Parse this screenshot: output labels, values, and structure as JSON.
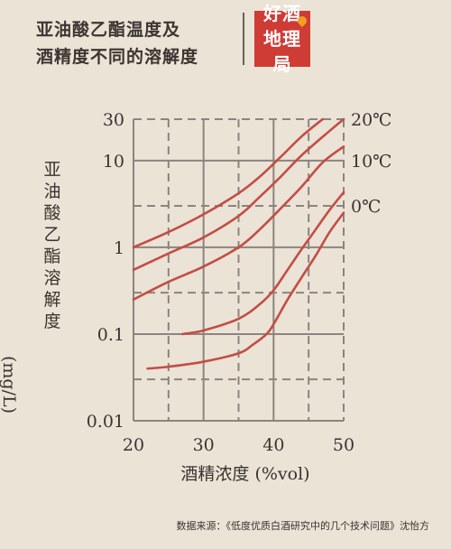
{
  "header": {
    "title_line1": "亚油酸乙酯温度及",
    "title_line2": "酒精度不同的溶解度",
    "logo_line1": "好酒",
    "logo_line2": "地理局"
  },
  "chart_data": {
    "type": "line",
    "ylabel_cjk": "亚油酸乙酯溶解度",
    "ylabel_unit": "(mg/L)",
    "xlabel": "酒精浓度 (%vol)",
    "xlim": [
      20,
      50
    ],
    "ylim": [
      0.01,
      30
    ],
    "y_scale": "log",
    "x_ticks": [
      "20",
      "30",
      "40",
      "50"
    ],
    "y_ticks": [
      {
        "label": "30",
        "value": 30
      },
      {
        "label": "10",
        "value": 10
      },
      {
        "label": "1",
        "value": 1
      },
      {
        "label": "0.1",
        "value": 0.1
      },
      {
        "label": "0.01",
        "value": 0.01
      }
    ],
    "grid": true,
    "curve_labels": [
      "20℃",
      "10℃",
      "0℃"
    ],
    "series": [
      {
        "name": "20℃",
        "x": [
          20,
          25,
          30,
          35,
          38,
          41,
          44,
          47
        ],
        "y": [
          1.0,
          1.5,
          2.4,
          4.2,
          6.5,
          11,
          19,
          30
        ]
      },
      {
        "name": "",
        "x": [
          20,
          25,
          30,
          35,
          38,
          41,
          44,
          48,
          50
        ],
        "y": [
          0.55,
          0.85,
          1.3,
          2.3,
          3.8,
          6.5,
          11.5,
          22,
          30
        ]
      },
      {
        "name": "10℃",
        "x": [
          20,
          25,
          30,
          35,
          38,
          41,
          44,
          47,
          50
        ],
        "y": [
          0.25,
          0.4,
          0.6,
          1.0,
          1.6,
          2.8,
          5.0,
          9.5,
          14.5
        ]
      },
      {
        "name": "",
        "x": [
          27,
          30,
          35,
          38,
          40,
          42,
          44,
          46,
          48,
          50
        ],
        "y": [
          0.1,
          0.11,
          0.15,
          0.22,
          0.32,
          0.55,
          0.95,
          1.6,
          2.7,
          4.3
        ]
      },
      {
        "name": "0℃",
        "x": [
          22,
          25,
          30,
          35,
          37,
          39,
          40,
          42,
          44,
          46,
          48,
          50
        ],
        "y": [
          0.04,
          0.042,
          0.048,
          0.06,
          0.075,
          0.1,
          0.13,
          0.25,
          0.45,
          0.8,
          1.5,
          2.5
        ]
      }
    ],
    "line_color": "#c44d45",
    "grid_color": "#8c847f"
  },
  "footer": {
    "source": "数据来源：《低度优质白酒研究中的几个技术问题》沈怡方"
  }
}
